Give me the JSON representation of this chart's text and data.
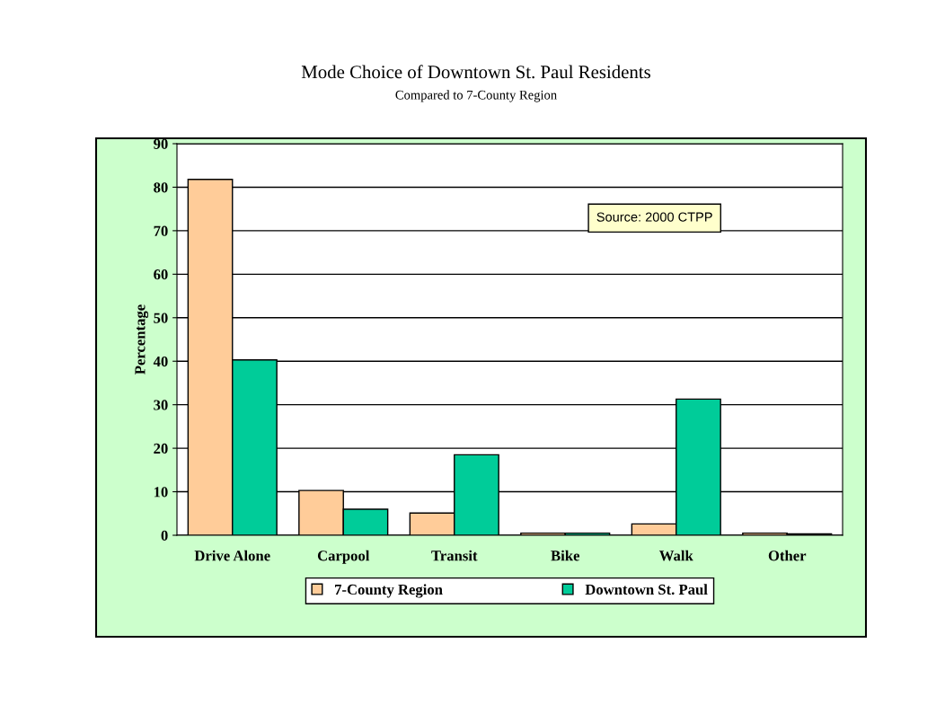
{
  "chart_data": {
    "type": "bar",
    "title": "Mode Choice of Downtown St. Paul Residents",
    "subtitle": "Compared to 7-County Region",
    "ylabel": "Percentage",
    "categories": [
      "Drive Alone",
      "Carpool",
      "Transit",
      "Bike",
      "Walk",
      "Other"
    ],
    "series": [
      {
        "name": "7-County Region",
        "color": "#ffcc99",
        "values": [
          81.8,
          10.3,
          5.1,
          0.5,
          2.6,
          0.5
        ]
      },
      {
        "name": "Downtown St. Paul",
        "color": "#00cc99",
        "values": [
          40.3,
          6.0,
          18.5,
          0.5,
          31.3,
          0.3
        ]
      }
    ],
    "ylim": [
      0,
      90
    ],
    "yticks": [
      0,
      10,
      20,
      30,
      40,
      50,
      60,
      70,
      80,
      90
    ],
    "grid": "y",
    "legend": "bottom",
    "annotations": [
      "Source: 2000 CTPP"
    ]
  }
}
